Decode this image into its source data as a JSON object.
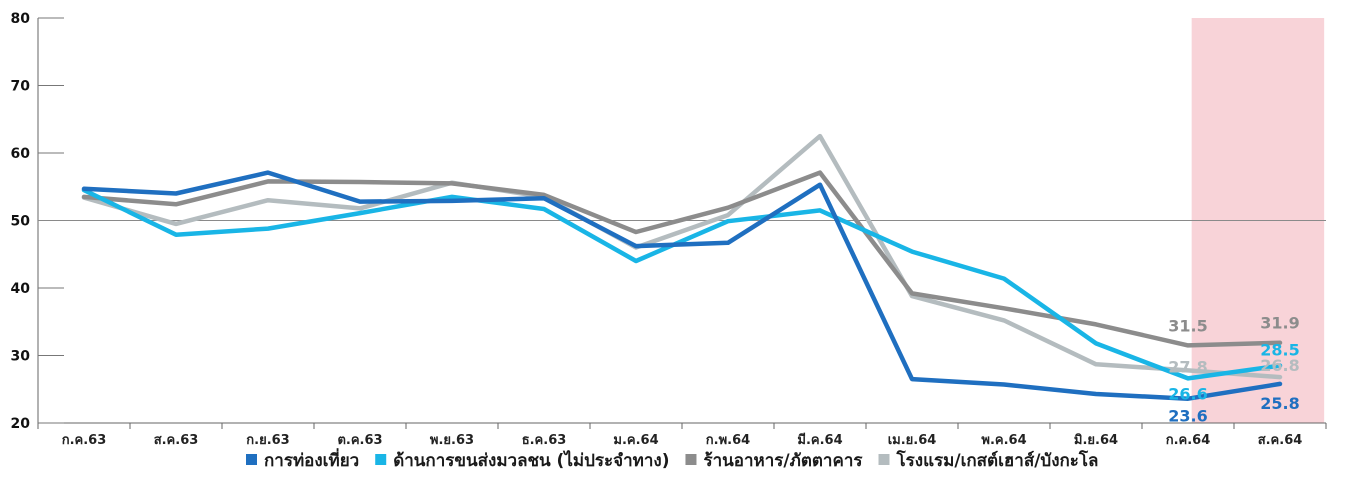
{
  "chart_data": {
    "type": "line",
    "title": "",
    "xlabel": "",
    "ylabel": "",
    "categories": [
      "ก.ค.63",
      "ส.ค.63",
      "ก.ย.63",
      "ต.ค.63",
      "พ.ย.63",
      "ธ.ค.63",
      "ม.ค.64",
      "ก.พ.64",
      "มี.ค.64",
      "เม.ย.64",
      "พ.ค.64",
      "มิ.ย.64",
      "ก.ค.64",
      "ส.ค.64"
    ],
    "ylim": [
      20,
      80
    ],
    "yticks": [
      "20",
      "30",
      "40",
      "50",
      "60",
      "70",
      "80"
    ],
    "reference_line": 50,
    "highlight_categories": [
      "ก.ค.64",
      "ส.ค.64"
    ],
    "series": [
      {
        "name": "การท่องเที่ยว",
        "color": "#1f6fc0",
        "values": [
          54.7,
          54.0,
          57.1,
          52.8,
          52.9,
          53.3,
          46.2,
          46.7,
          55.3,
          26.5,
          25.7,
          24.3,
          23.6,
          25.8
        ]
      },
      {
        "name": "ด้านการขนส่งมวลชน (ไม่ประจำทาง)",
        "color": "#19b5e6",
        "values": [
          54.5,
          47.9,
          48.8,
          51.1,
          53.5,
          51.7,
          44.0,
          49.9,
          51.5,
          45.4,
          41.4,
          31.8,
          26.6,
          28.5
        ]
      },
      {
        "name": "ร้านอาหาร/ภัตตาคาร",
        "color": "#8c8c8c",
        "values": [
          53.5,
          52.4,
          55.8,
          55.7,
          55.5,
          53.8,
          48.3,
          51.9,
          57.1,
          39.2,
          37.0,
          34.6,
          31.5,
          31.9
        ]
      },
      {
        "name": "โรงแรม/เกสต์เฮาส์/บังกะโล",
        "color": "#b4bcbf",
        "values": [
          53.4,
          49.5,
          53.0,
          51.8,
          55.6,
          53.5,
          46.0,
          50.8,
          62.5,
          38.8,
          35.2,
          28.7,
          27.8,
          26.8
        ]
      }
    ],
    "data_labels": [
      {
        "series": 2,
        "index": 12,
        "text": "31.5"
      },
      {
        "series": 2,
        "index": 13,
        "text": "31.9"
      },
      {
        "series": 3,
        "index": 12,
        "text": "27.8"
      },
      {
        "series": 1,
        "index": 12,
        "text": "26.6"
      },
      {
        "series": 1,
        "index": 13,
        "text": "28.5"
      },
      {
        "series": 3,
        "index": 13,
        "text": "26.8"
      },
      {
        "series": 0,
        "index": 12,
        "text": "23.6"
      },
      {
        "series": 0,
        "index": 13,
        "text": "25.8"
      }
    ],
    "legend": "bottom"
  }
}
